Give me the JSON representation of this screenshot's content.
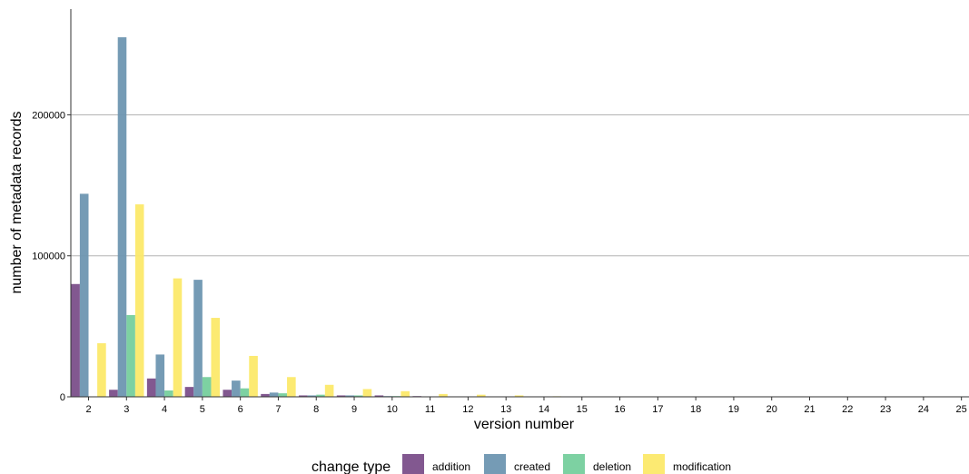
{
  "chart_data": {
    "type": "bar",
    "xlabel": "version number",
    "ylabel": "number of metadata records",
    "categories": [
      "2",
      "3",
      "4",
      "5",
      "6",
      "7",
      "8",
      "9",
      "10",
      "11",
      "12",
      "13",
      "14",
      "15",
      "16",
      "17",
      "18",
      "19",
      "20",
      "21",
      "22",
      "23",
      "24",
      "25"
    ],
    "ylim": [
      0,
      275000
    ],
    "yticks": [
      0,
      100000,
      200000
    ],
    "ytick_labels": [
      "0",
      "100000",
      "200000"
    ],
    "grid": "horizontal major",
    "legend": {
      "title": "change type",
      "position": "bottom"
    },
    "series": [
      {
        "name": "addition",
        "color": "#7b4f8a",
        "values": [
          80000,
          5000,
          13000,
          7000,
          5000,
          2000,
          1000,
          1000,
          1000,
          500,
          300,
          200,
          100,
          100,
          80,
          60,
          50,
          40,
          30,
          20,
          20,
          10,
          10,
          10
        ]
      },
      {
        "name": "created",
        "color": "#6e96b1",
        "values": [
          144000,
          255000,
          30000,
          83000,
          11500,
          3000,
          1000,
          1000,
          500,
          300,
          200,
          100,
          100,
          80,
          60,
          50,
          40,
          30,
          20,
          20,
          10,
          10,
          10,
          10
        ]
      },
      {
        "name": "deletion",
        "color": "#76cf9d",
        "values": [
          0,
          58000,
          4500,
          14000,
          6000,
          2500,
          1500,
          1000,
          500,
          300,
          200,
          100,
          80,
          60,
          50,
          40,
          30,
          20,
          20,
          10,
          10,
          10,
          10,
          10
        ]
      },
      {
        "name": "modification",
        "color": "#fce96a",
        "values": [
          38000,
          136500,
          84000,
          56000,
          29000,
          14000,
          8500,
          5500,
          4000,
          2000,
          1500,
          1000,
          400,
          300,
          200,
          150,
          100,
          80,
          60,
          50,
          40,
          30,
          20,
          20
        ]
      }
    ]
  }
}
